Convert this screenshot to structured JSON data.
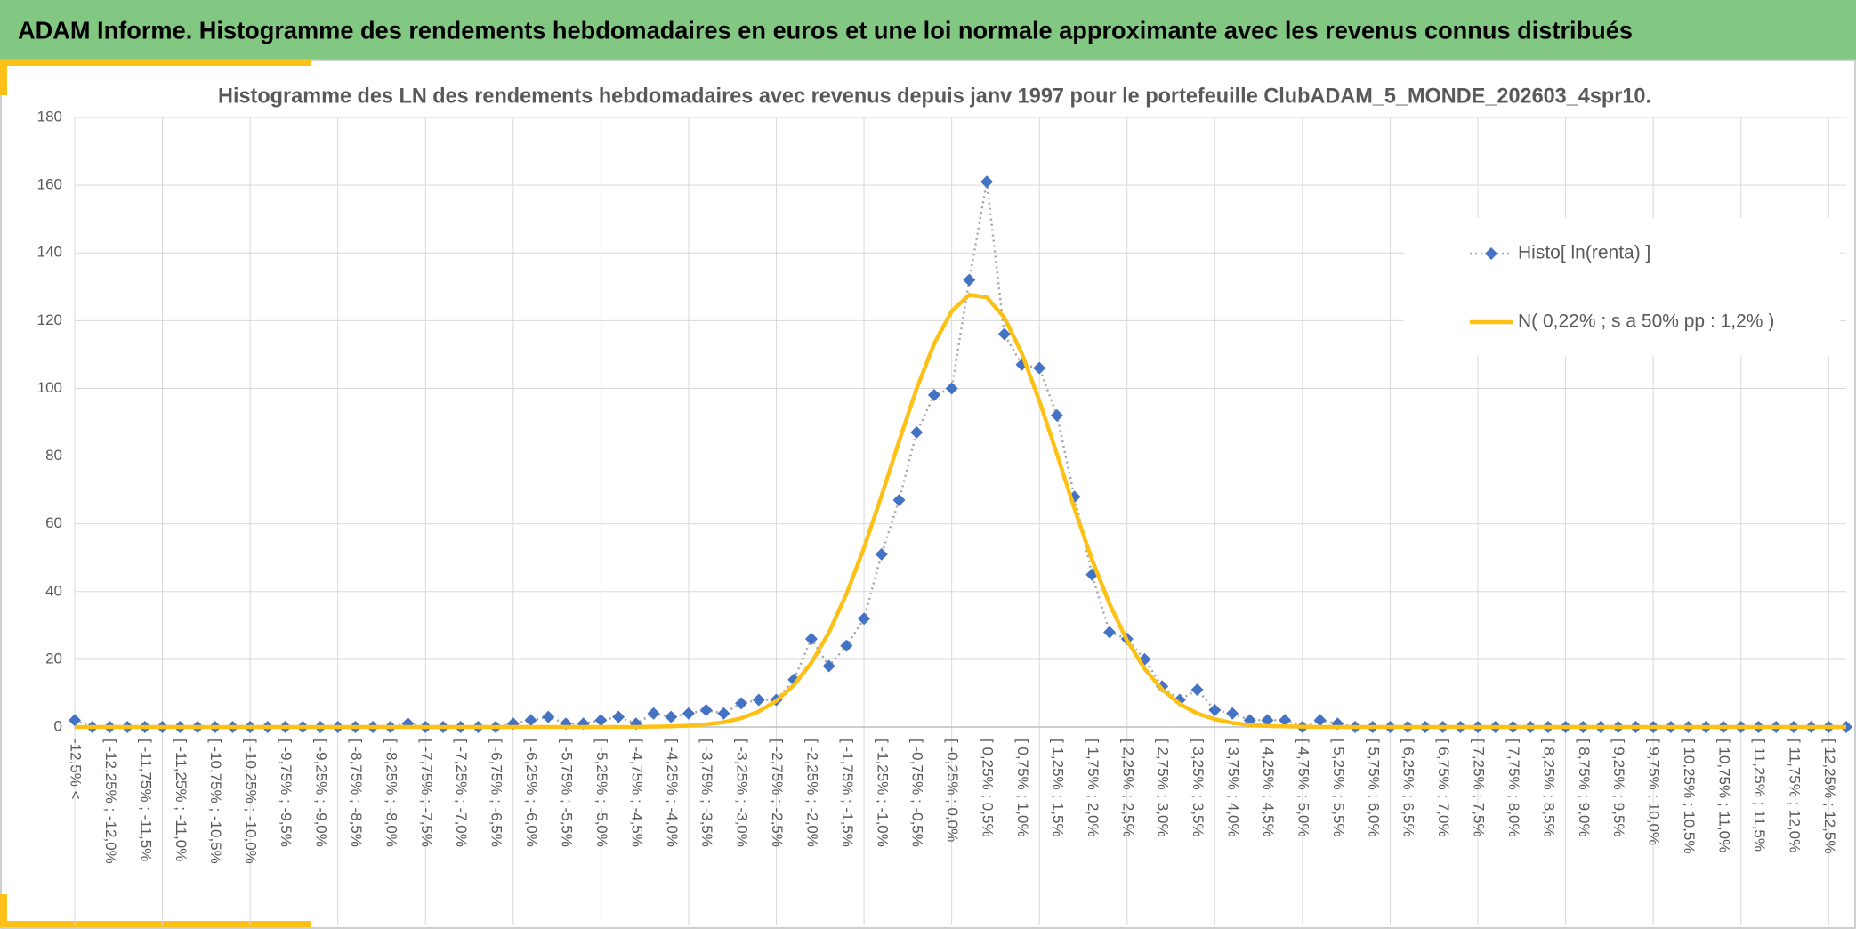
{
  "header": {
    "title": "ADAM Informe. Histogramme des rendements hebdomadaires en euros et une loi normale approximante avec les revenus connus distribués"
  },
  "chart_data": {
    "type": "line",
    "title": "Histogramme des LN des rendements hebdomadaires avec revenus depuis janv 1997 pour le portefeuille ClubADAM_5_MONDE_202603_4spr10.",
    "categories": [
      "-12,5% <",
      null,
      "[ -12,25% ; -12,0%",
      null,
      "[ -11,75% ; -11,5%",
      null,
      "[ -11,25% ; -11,0%",
      null,
      "[ -10,75% ; -10,5%",
      null,
      "[ -10,25% ; -10,0%",
      null,
      "[ -9,75% ; -9,5%",
      null,
      "[ -9,25% ; -9,0%",
      null,
      "[ -8,75% ; -8,5%",
      null,
      "[ -8,25% ; -8,0%",
      null,
      "[ -7,75% ; -7,5%",
      null,
      "[ -7,25% ; -7,0%",
      null,
      "[ -6,75% ; -6,5%",
      null,
      "[ -6,25% ; -6,0%",
      null,
      "[ -5,75% ; -5,5%",
      null,
      "[ -5,25% ; -5,0%",
      null,
      "[ -4,75% ; -4,5%",
      null,
      "[ -4,25% ; -4,0%",
      null,
      "[ -3,75% ; -3,5%",
      null,
      "[ -3,25% ; -3,0%",
      null,
      "[ -2,75% ; -2,5%",
      null,
      "[ -2,25% ; -2,0%",
      null,
      "[ -1,75% ; -1,5%",
      null,
      "[ -1,25% ; -1,0%",
      null,
      "[ -0,75% ; -0,5%",
      null,
      "[ -0,25% ; 0,0%",
      null,
      "[ 0,25% ; 0,5%",
      null,
      "[ 0,75% ; 1,0%",
      null,
      "[ 1,25% ; 1,5%",
      null,
      "[ 1,75% ; 2,0%",
      null,
      "[ 2,25% ; 2,5%",
      null,
      "[ 2,75% ; 3,0%",
      null,
      "[ 3,25% ; 3,5%",
      null,
      "[ 3,75% ; 4,0%",
      null,
      "[ 4,25% ; 4,5%",
      null,
      "[ 4,75% ; 5,0%",
      null,
      "[ 5,25% ; 5,5%",
      null,
      "[ 5,75% ; 6,0%",
      null,
      "[ 6,25% ; 6,5%",
      null,
      "[ 6,75% ; 7,0%",
      null,
      "[ 7,25% ; 7,5%",
      null,
      "[ 7,75% ; 8,0%",
      null,
      "[ 8,25% ; 8,5%",
      null,
      "[ 8,75% ; 9,0%",
      null,
      "[ 9,25% ; 9,5%",
      null,
      "[ 9,75% ; 10,0%",
      null,
      "[ 10,25% ; 10,5%",
      null,
      "[ 10,75% ; 11,0%",
      null,
      "[ 11,25% ; 11,5%",
      null,
      "[ 11,75% ; 12,0%",
      null,
      "[ 12,25% ; 12,5%",
      null
    ],
    "series": [
      {
        "name": "Histo[ ln(renta) ]",
        "color": "#4472c4",
        "line_color": "#a5a5a5",
        "marker": "diamond",
        "dash": "dotted",
        "values": [
          2,
          0,
          0,
          0,
          0,
          0,
          0,
          0,
          0,
          0,
          0,
          0,
          0,
          0,
          0,
          0,
          0,
          0,
          0,
          1,
          0,
          0,
          0,
          0,
          0,
          1,
          2,
          3,
          1,
          1,
          2,
          3,
          1,
          4,
          3,
          4,
          5,
          4,
          7,
          8,
          8,
          14,
          26,
          18,
          24,
          32,
          51,
          67,
          87,
          98,
          100,
          132,
          161,
          116,
          107,
          106,
          92,
          68,
          45,
          28,
          26,
          20,
          12,
          8,
          11,
          5,
          4,
          2,
          2,
          2,
          0,
          2,
          1,
          0,
          0,
          0,
          0,
          0,
          0,
          0,
          0,
          0,
          0,
          0,
          0,
          0,
          0,
          0,
          0,
          0,
          0,
          0,
          0,
          0,
          0,
          0,
          0,
          0,
          0,
          0,
          0,
          0
        ]
      },
      {
        "name": "N( 0,22% ; s a 50% pp : 1,2% )",
        "color": "#fcc016",
        "marker": "none",
        "dash": "solid",
        "values": [
          0,
          0,
          0,
          0,
          0,
          0,
          0,
          0,
          0,
          0,
          0,
          0,
          0,
          0,
          0,
          0,
          0,
          0,
          0,
          0,
          0,
          0,
          0,
          0,
          0,
          0,
          0,
          0,
          0,
          0,
          0,
          0,
          0,
          0.1,
          0.2,
          0.4,
          0.8,
          1.4,
          2.6,
          4.6,
          7.7,
          12.4,
          19.0,
          27.9,
          39.3,
          52.9,
          68.3,
          84.4,
          99.9,
          113.2,
          122.8,
          127.6,
          126.9,
          120.9,
          110.3,
          96.3,
          80.6,
          64.5,
          49.4,
          36.3,
          25.5,
          17.2,
          11.1,
          6.8,
          4.0,
          2.3,
          1.2,
          0.6,
          0.3,
          0.2,
          0.1,
          0,
          0,
          0,
          0,
          0,
          0,
          0,
          0,
          0,
          0,
          0,
          0,
          0,
          0,
          0,
          0,
          0,
          0,
          0,
          0,
          0,
          0,
          0,
          0,
          0,
          0,
          0,
          0,
          0,
          0,
          0
        ]
      }
    ],
    "ylim": [
      0,
      180
    ],
    "yticks": [
      0,
      20,
      40,
      60,
      80,
      100,
      120,
      140,
      160,
      180
    ],
    "grid": true,
    "legend": "right"
  }
}
